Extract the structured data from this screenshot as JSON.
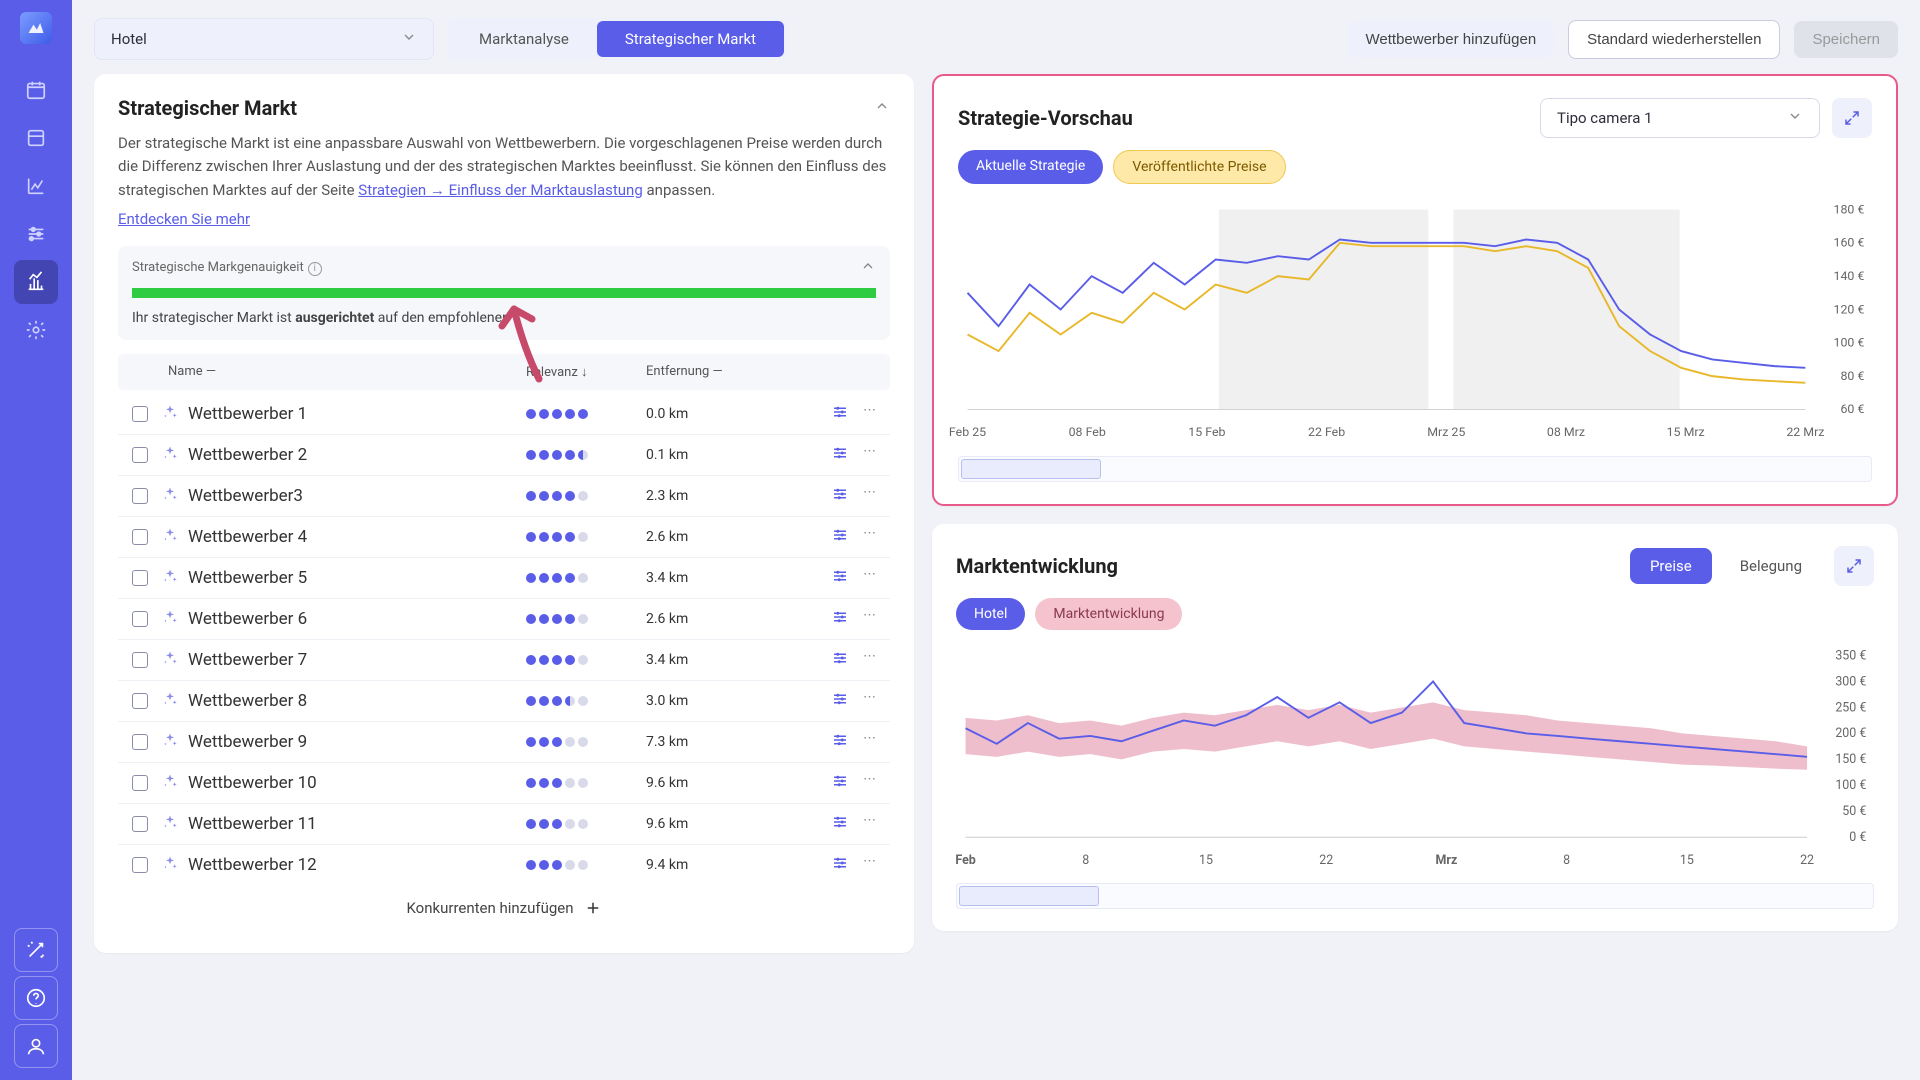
{
  "topbar": {
    "dropdown_value": "Hotel",
    "tabs": [
      "Marktanalyse",
      "Strategischer Markt"
    ],
    "active_tab": 1,
    "btn_add": "Wettbewerber hinzufügen",
    "btn_reset": "Standard wiederherstellen",
    "btn_save": "Speichern"
  },
  "left_panel": {
    "title": "Strategischer Markt",
    "desc_1": "Der strategische Markt ist eine anpassbare Auswahl von Wettbewerbern. Die vorgeschlagenen Preise werden durch die Differenz zwischen Ihrer Auslastung und der des strategischen Marktes beeinflusst. Sie können den Einfluss des strategischen Marktes auf der Seite ",
    "desc_link": "Strategien → Einfluss der Marktauslastung",
    "desc_2": " anpassen.",
    "discover": "Entdecken Sie mehr",
    "accuracy_label": "Strategische Markgenauigkeit",
    "accuracy_pct": 100,
    "accuracy_status_pre": "Ihr strategischer Markt ist ",
    "accuracy_status_bold": "ausgerichtet",
    "accuracy_status_post": " auf den empfohlenen",
    "col_name": "Name —",
    "col_rel": "Relevanz ↓",
    "col_dist": "Entfernung —",
    "rows": [
      {
        "name": "Wettbewerber 1",
        "dots": [
          1,
          1,
          1,
          1,
          1
        ],
        "dist": "0.0 km"
      },
      {
        "name": "Wettbewerber 2",
        "dots": [
          1,
          1,
          1,
          1,
          0.5
        ],
        "dist": "0.1 km"
      },
      {
        "name": "Wettbewerber3",
        "dots": [
          1,
          1,
          1,
          1,
          0
        ],
        "dist": "2.3 km"
      },
      {
        "name": "Wettbewerber 4",
        "dots": [
          1,
          1,
          1,
          1,
          0
        ],
        "dist": "2.6 km"
      },
      {
        "name": "Wettbewerber 5",
        "dots": [
          1,
          1,
          1,
          1,
          0
        ],
        "dist": "3.4 km"
      },
      {
        "name": "Wettbewerber 6",
        "dots": [
          1,
          1,
          1,
          1,
          0
        ],
        "dist": "2.6 km"
      },
      {
        "name": "Wettbewerber 7",
        "dots": [
          1,
          1,
          1,
          1,
          0
        ],
        "dist": "3.4 km"
      },
      {
        "name": "Wettbewerber 8",
        "dots": [
          1,
          1,
          1,
          0.5,
          0
        ],
        "dist": "3.0 km"
      },
      {
        "name": "Wettbewerber 9",
        "dots": [
          1,
          1,
          1,
          0,
          0
        ],
        "dist": "7.3 km"
      },
      {
        "name": "Wettbewerber 10",
        "dots": [
          1,
          1,
          1,
          0,
          0
        ],
        "dist": "9.6 km"
      },
      {
        "name": "Wettbewerber 11",
        "dots": [
          1,
          1,
          1,
          0,
          0
        ],
        "dist": "9.6 km"
      },
      {
        "name": "Wettbewerber 12",
        "dots": [
          1,
          1,
          1,
          0,
          0
        ],
        "dist": "9.4 km"
      }
    ],
    "add_label": "Konkurrenten hinzufügen"
  },
  "preview": {
    "title": "Strategie-Vorschau",
    "dropdown": "Tipo camera 1",
    "chip_current": "Aktuelle Strategie",
    "chip_published": "Veröffentlichte Preise",
    "y_ticks": [
      "180 €",
      "160 €",
      "140 €",
      "120 €",
      "100 €",
      "80 €",
      "60 €"
    ],
    "y_range": [
      60,
      180
    ],
    "x_labels": [
      "Feb 25",
      "08 Feb",
      "15 Feb",
      "22 Feb",
      "Mrz 25",
      "08 Mrz",
      "15 Mrz",
      "22 Mrz"
    ],
    "series_blue": [
      130,
      110,
      135,
      120,
      140,
      130,
      148,
      135,
      150,
      148,
      152,
      150,
      162,
      160,
      160,
      160,
      160,
      158,
      162,
      160,
      150,
      120,
      105,
      95,
      90,
      88,
      86,
      85
    ],
    "series_yellow": [
      105,
      95,
      118,
      105,
      118,
      112,
      130,
      120,
      135,
      130,
      140,
      138,
      160,
      158,
      158,
      158,
      158,
      155,
      158,
      155,
      145,
      110,
      95,
      85,
      80,
      78,
      77,
      76
    ],
    "line_blue": "#5a5de8",
    "line_yellow": "#e8b82a",
    "weekend_bands": [
      [
        0.3,
        0.55
      ],
      [
        0.58,
        0.85
      ]
    ],
    "band_color": "#f0f0f0"
  },
  "market": {
    "title": "Marktentwicklung",
    "pill_prices": "Preise",
    "pill_occupancy": "Belegung",
    "chip_hotel": "Hotel",
    "chip_market": "Marktentwicklung",
    "y_ticks": [
      "350 €",
      "300 €",
      "250 €",
      "200 €",
      "150 €",
      "100 €",
      "50 €",
      "0 €"
    ],
    "y_range": [
      0,
      350
    ],
    "x_labels": [
      "Feb",
      "8",
      "15",
      "22",
      "Mrz",
      "8",
      "15",
      "22"
    ],
    "series_hotel": [
      210,
      180,
      220,
      190,
      195,
      185,
      205,
      225,
      215,
      235,
      270,
      230,
      260,
      220,
      240,
      300,
      220,
      210,
      200,
      195,
      190,
      185,
      180,
      175,
      170,
      165,
      160,
      155
    ],
    "area_upper": [
      230,
      225,
      235,
      220,
      225,
      215,
      230,
      240,
      235,
      245,
      255,
      245,
      255,
      240,
      250,
      260,
      245,
      240,
      235,
      225,
      220,
      215,
      210,
      200,
      195,
      190,
      185,
      175
    ],
    "area_lower": [
      160,
      155,
      165,
      155,
      160,
      150,
      165,
      170,
      165,
      175,
      185,
      175,
      185,
      170,
      180,
      190,
      175,
      170,
      165,
      160,
      155,
      150,
      145,
      140,
      138,
      135,
      132,
      130
    ],
    "line_color": "#5a5de8",
    "area_color": "#e8a8bb"
  },
  "colors": {
    "sidebar": "#5a5de8",
    "accent": "#5a5de8",
    "highlight_border": "#e85a8a",
    "progress": "#2ecc40"
  }
}
